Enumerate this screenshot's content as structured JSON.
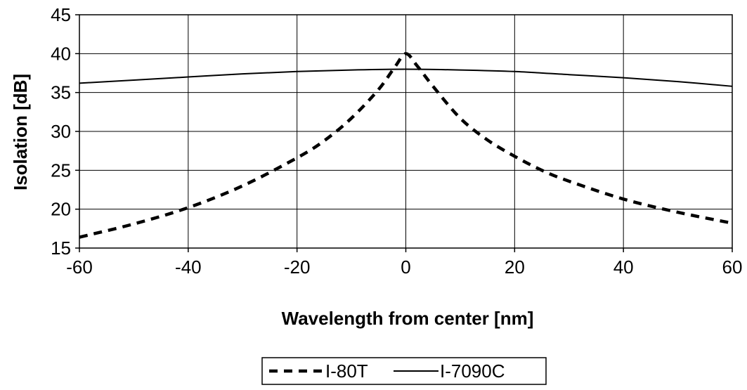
{
  "chart_data": {
    "type": "line",
    "title": "",
    "xlabel": "Wavelength from center [nm]",
    "ylabel": "Isolation [dB]",
    "xlim": [
      -60,
      60
    ],
    "ylim": [
      15,
      45
    ],
    "xticks": [
      -60,
      -40,
      -20,
      0,
      20,
      40,
      60
    ],
    "yticks": [
      15,
      20,
      25,
      30,
      35,
      40,
      45
    ],
    "xtick_labels": [
      "-60",
      "-40",
      "-20",
      "0",
      "20",
      "40",
      "60"
    ],
    "ytick_labels": [
      "15",
      "20",
      "25",
      "30",
      "35",
      "40",
      "45"
    ],
    "grid": true,
    "legend_position": "bottom-center",
    "series": [
      {
        "name": "I-80T",
        "line_style": "dashed",
        "color": "#000000",
        "x": [
          -60,
          -50,
          -40,
          -30,
          -20,
          -15,
          -10,
          -5,
          -2,
          0,
          2,
          5,
          10,
          15,
          20,
          25,
          30,
          40,
          50,
          60
        ],
        "y": [
          16.4,
          18.1,
          20.2,
          23.0,
          26.6,
          28.8,
          31.7,
          35.4,
          38.3,
          40.0,
          38.5,
          35.8,
          31.7,
          28.9,
          26.8,
          25.0,
          23.6,
          21.3,
          19.6,
          18.2
        ]
      },
      {
        "name": "I-7090C",
        "line_style": "solid",
        "color": "#000000",
        "x": [
          -60,
          -50,
          -40,
          -30,
          -20,
          -10,
          0,
          10,
          20,
          30,
          40,
          50,
          60
        ],
        "y": [
          36.2,
          36.6,
          37.0,
          37.4,
          37.7,
          37.9,
          38.0,
          37.9,
          37.7,
          37.3,
          36.9,
          36.4,
          35.8
        ]
      }
    ]
  }
}
